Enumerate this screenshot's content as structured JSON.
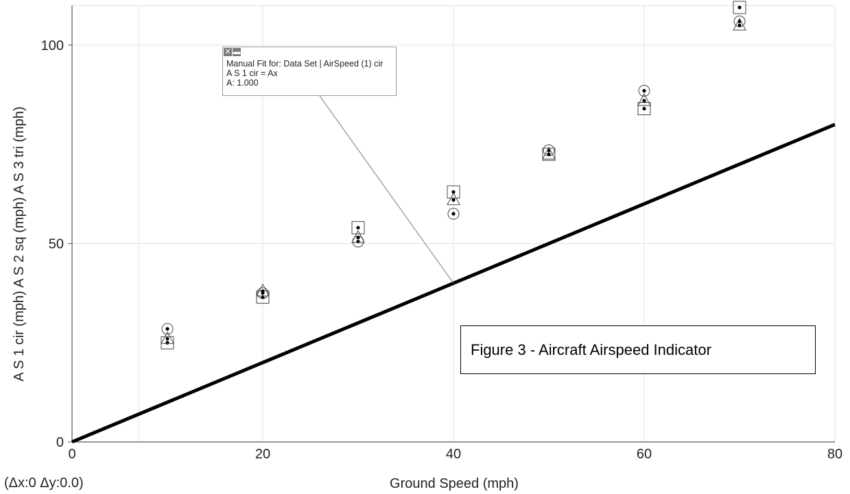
{
  "chart_data": {
    "type": "scatter",
    "xlabel": "Ground Speed (mph)",
    "ylabel": "A S 1 cir (mph) A S 2 sq (mph) A S 3 tri (mph)",
    "xlim": [
      0,
      80
    ],
    "ylim": [
      0,
      110
    ],
    "x_ticks": [
      0,
      20,
      40,
      60,
      80
    ],
    "y_ticks": [
      0,
      50,
      100
    ],
    "x_minor_grid": [
      7
    ],
    "grid": true,
    "series": [
      {
        "name": "A S 1 cir (mph)",
        "marker": "circle",
        "x": [
          10,
          20,
          30,
          40,
          50,
          60,
          70
        ],
        "y": [
          28.5,
          37.5,
          50.5,
          57.5,
          73.5,
          88.5,
          106
        ]
      },
      {
        "name": "A S 2 sq (mph)",
        "marker": "square",
        "x": [
          10,
          20,
          30,
          40,
          50,
          60,
          70
        ],
        "y": [
          25,
          36.5,
          54,
          63,
          72.5,
          84,
          109.5
        ]
      },
      {
        "name": "A S 3 tri (mph)",
        "marker": "triangle",
        "x": [
          10,
          20,
          30,
          40,
          50,
          60,
          70
        ],
        "y": [
          26,
          38,
          51.5,
          61,
          72.5,
          86,
          105
        ]
      }
    ],
    "fit_line": {
      "label": "A S 1 cir = Ax",
      "A": 1.0,
      "x": [
        0,
        80
      ],
      "y": [
        0,
        80
      ]
    },
    "annotation_anchor": {
      "x": 40,
      "y": 40
    }
  },
  "fit_box": {
    "close_icon": "close-icon",
    "minimize_icon": "minimize-icon",
    "line1": "Manual Fit for: Data Set | AirSpeed (1) cir",
    "line2": "A S 1 cir = Ax",
    "line3": "A: 1.000"
  },
  "caption": "Figure 3 - Aircraft Airspeed Indicator",
  "delta_readout": "(Δx:0 Δy:0.0)"
}
